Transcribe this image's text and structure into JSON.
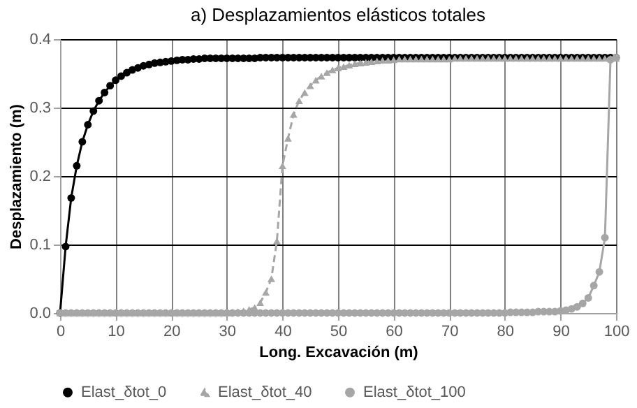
{
  "chart_data": {
    "type": "line",
    "title": "a) Desplazamientos elásticos totales",
    "xlabel": "Long. Excavación (m)",
    "ylabel": "Desplazamiento (m)",
    "x": [
      0,
      1,
      2,
      3,
      4,
      5,
      6,
      7,
      8,
      9,
      10,
      11,
      12,
      13,
      14,
      15,
      16,
      17,
      18,
      19,
      20,
      21,
      22,
      23,
      24,
      25,
      26,
      27,
      28,
      29,
      30,
      31,
      32,
      33,
      34,
      35,
      36,
      37,
      38,
      39,
      40,
      41,
      42,
      43,
      44,
      45,
      46,
      47,
      48,
      49,
      50,
      51,
      52,
      53,
      54,
      55,
      56,
      57,
      58,
      59,
      60,
      61,
      62,
      63,
      64,
      65,
      66,
      67,
      68,
      69,
      70,
      71,
      72,
      73,
      74,
      75,
      76,
      77,
      78,
      79,
      80,
      81,
      82,
      83,
      84,
      85,
      86,
      87,
      88,
      89,
      90,
      91,
      92,
      93,
      94,
      95,
      96,
      97,
      98,
      99,
      100
    ],
    "series": [
      {
        "name": "Elast_δtot_0",
        "color": "#000000",
        "marker": "circle",
        "line_style": "solid",
        "values": [
          0,
          0.097,
          0.168,
          0.215,
          0.25,
          0.275,
          0.295,
          0.31,
          0.322,
          0.332,
          0.34,
          0.346,
          0.351,
          0.355,
          0.358,
          0.361,
          0.363,
          0.365,
          0.366,
          0.367,
          0.368,
          0.369,
          0.37,
          0.37,
          0.371,
          0.371,
          0.372,
          0.372,
          0.372,
          0.372,
          0.372,
          0.372,
          0.372,
          0.372,
          0.372,
          0.372,
          0.373,
          0.373,
          0.373,
          0.373,
          0.373,
          0.373,
          0.373,
          0.373,
          0.373,
          0.373,
          0.373,
          0.373,
          0.373,
          0.373,
          0.373,
          0.373,
          0.373,
          0.373,
          0.373,
          0.373,
          0.373,
          0.373,
          0.373,
          0.373,
          0.373,
          0.373,
          0.373,
          0.373,
          0.373,
          0.373,
          0.373,
          0.373,
          0.373,
          0.373,
          0.373,
          0.373,
          0.373,
          0.373,
          0.373,
          0.373,
          0.373,
          0.373,
          0.373,
          0.373,
          0.373,
          0.373,
          0.373,
          0.373,
          0.373,
          0.373,
          0.373,
          0.373,
          0.373,
          0.373,
          0.373,
          0.373,
          0.373,
          0.373,
          0.373,
          0.373,
          0.373,
          0.373,
          0.373,
          0.373,
          0.373
        ]
      },
      {
        "name": "Elast_δtot_40",
        "color": "#a6a6a6",
        "marker": "triangle",
        "line_style": "dashed",
        "values": [
          0,
          0,
          0,
          0,
          0,
          0,
          0,
          0,
          0,
          0,
          0,
          0,
          0,
          0,
          0,
          0,
          0,
          0,
          0,
          0,
          0,
          0,
          0,
          0,
          0,
          0,
          0,
          0,
          0,
          0,
          0,
          0.001,
          0.002,
          0.003,
          0.005,
          0.008,
          0.015,
          0.03,
          0.05,
          0.105,
          0.215,
          0.255,
          0.29,
          0.31,
          0.322,
          0.332,
          0.34,
          0.346,
          0.351,
          0.355,
          0.358,
          0.36,
          0.362,
          0.364,
          0.365,
          0.366,
          0.367,
          0.368,
          0.369,
          0.369,
          0.37,
          0.371,
          0.371,
          0.371,
          0.371,
          0.371,
          0.371,
          0.371,
          0.371,
          0.371,
          0.371,
          0.372,
          0.372,
          0.372,
          0.372,
          0.372,
          0.372,
          0.372,
          0.372,
          0.372,
          0.372,
          0.372,
          0.372,
          0.372,
          0.372,
          0.372,
          0.372,
          0.372,
          0.372,
          0.372,
          0.372,
          0.372,
          0.372,
          0.372,
          0.372,
          0.372,
          0.372,
          0.372,
          0.372,
          0.372,
          0.372
        ]
      },
      {
        "name": "Elast_δtot_100",
        "color": "#a6a6a6",
        "marker": "circle",
        "line_style": "solid",
        "values": [
          0,
          0,
          0,
          0,
          0,
          0,
          0,
          0,
          0,
          0,
          0,
          0,
          0,
          0,
          0,
          0,
          0,
          0,
          0,
          0,
          0,
          0,
          0,
          0,
          0,
          0,
          0,
          0,
          0,
          0,
          0,
          0,
          0,
          0,
          0,
          0,
          0,
          0,
          0,
          0,
          0,
          0,
          0,
          0,
          0,
          0,
          0,
          0,
          0,
          0,
          0,
          0,
          0,
          0,
          0,
          0,
          0,
          0,
          0,
          0,
          0,
          0,
          0,
          0,
          0,
          0,
          0,
          0,
          0,
          0,
          0,
          0,
          0,
          0,
          0,
          0,
          0,
          0,
          0,
          0,
          0,
          0.001,
          0.001,
          0.001,
          0.001,
          0.001,
          0.002,
          0.002,
          0.002,
          0.002,
          0.003,
          0.004,
          0.006,
          0.009,
          0.014,
          0.022,
          0.04,
          0.06,
          0.11,
          0.37,
          0.373
        ]
      }
    ],
    "xlim": [
      0,
      100
    ],
    "xticks": [
      0,
      10,
      20,
      30,
      40,
      50,
      60,
      70,
      80,
      90,
      100
    ],
    "ylim": [
      0,
      0.4
    ],
    "yticks": [
      {
        "value": 0,
        "label": "0.0"
      },
      0.1,
      0.2,
      0.3,
      0.4
    ],
    "grid": true,
    "legend": "bottom"
  }
}
